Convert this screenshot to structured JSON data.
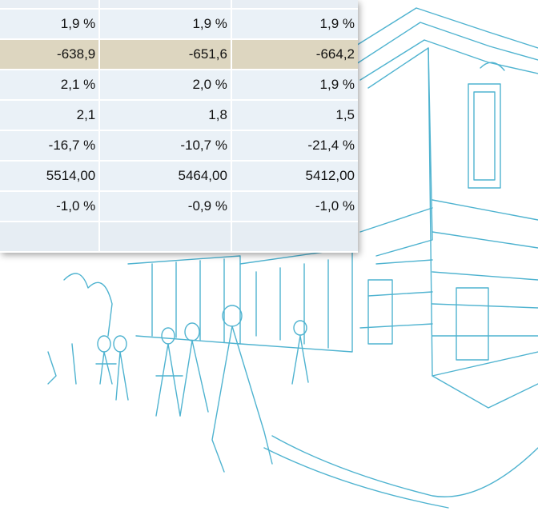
{
  "table": {
    "rows": [
      [
        "1,9 %",
        "1,9 %",
        "1,9 %"
      ],
      [
        "-638,9",
        "-651,6",
        "-664,2"
      ],
      [
        "2,1 %",
        "2,0 %",
        "1,9 %"
      ],
      [
        "2,1",
        "1,8",
        "1,5"
      ],
      [
        "-16,7 %",
        "-10,7 %",
        "-21,4 %"
      ],
      [
        "5514,00",
        "5464,00",
        "5412,00"
      ],
      [
        "-1,0 %",
        "-0,9 %",
        "-1,0 %"
      ]
    ]
  }
}
